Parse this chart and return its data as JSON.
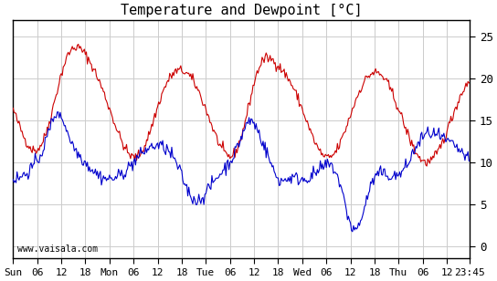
{
  "title": "Temperature and Dewpoint [°C]",
  "ylim": [
    -1.5,
    27
  ],
  "yticks": [
    0,
    5,
    10,
    15,
    20,
    25
  ],
  "bg_color": "#ffffff",
  "grid_color": "#cccccc",
  "temp_color": "#cc0000",
  "dewp_color": "#0000cc",
  "watermark": "www.vaisala.com",
  "xtick_labels": [
    "Sun",
    "06",
    "12",
    "18",
    "Mon",
    "06",
    "12",
    "18",
    "Tue",
    "06",
    "12",
    "18",
    "Wed",
    "06",
    "12",
    "18",
    "Thu",
    "06",
    "12",
    "23:45"
  ],
  "xtick_positions": [
    0,
    6,
    12,
    18,
    24,
    30,
    36,
    42,
    48,
    54,
    60,
    66,
    72,
    78,
    84,
    90,
    96,
    102,
    108,
    113.75
  ],
  "total_hours": 113.75
}
